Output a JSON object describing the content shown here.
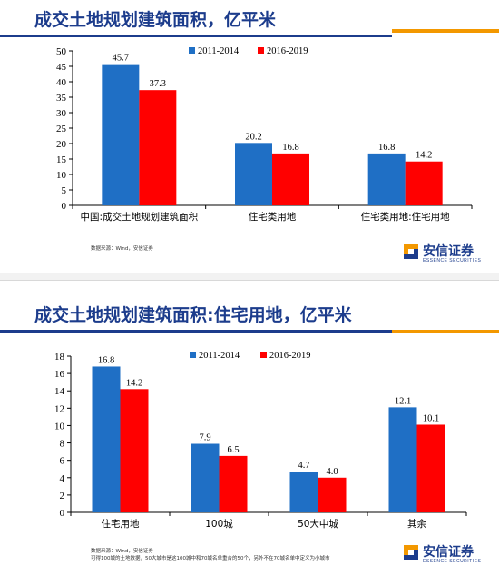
{
  "colors": {
    "blue": "#1f6fc5",
    "red": "#ff0000",
    "title": "#1c3c8c",
    "accent": "#f39800"
  },
  "logo": {
    "name_cn": "安信证券",
    "name_en": "ESSENCE SECURITIES",
    "icon": "essence-logo-icon"
  },
  "slide1": {
    "title": "成交土地规划建筑面积，亿平米",
    "source": "数据来源：Wind，安信证券"
  },
  "slide2": {
    "title": "成交土地规划建筑面积:住宅用地，亿平米",
    "source_line1": "数据来源：Wind，安信证券",
    "source_line2": "可得100城的土地数据，50大城市是这100城中和70城名单重合的50个，另外不在70城名单中定义为小城市"
  },
  "chart_data": [
    {
      "type": "bar",
      "title": "成交土地规划建筑面积，亿平米",
      "categories": [
        "中国:成交土地规划建筑面积",
        "住宅类用地",
        "住宅类用地:住宅用地"
      ],
      "series": [
        {
          "name": "2011-2014",
          "values": [
            45.7,
            20.2,
            16.8
          ]
        },
        {
          "name": "2016-2019",
          "values": [
            37.3,
            16.8,
            14.2
          ]
        }
      ],
      "data_labels": [
        [
          "45.7",
          "20.2",
          "16.8"
        ],
        [
          "37.3",
          "16.8",
          "14.2"
        ]
      ],
      "ylim": [
        0,
        50
      ],
      "yticks": [
        0,
        5,
        10,
        15,
        20,
        25,
        30,
        35,
        40,
        45,
        50
      ],
      "grid": false,
      "legend": "top-center"
    },
    {
      "type": "bar",
      "title": "成交土地规划建筑面积:住宅用地，亿平米",
      "categories": [
        "住宅用地",
        "100城",
        "50大中城",
        "其余"
      ],
      "series": [
        {
          "name": "2011-2014",
          "values": [
            16.8,
            7.9,
            4.7,
            12.1
          ]
        },
        {
          "name": "2016-2019",
          "values": [
            14.2,
            6.5,
            4.0,
            10.1
          ]
        }
      ],
      "data_labels": [
        [
          "16.8",
          "7.9",
          "4.7",
          "12.1"
        ],
        [
          "14.2",
          "6.5",
          "4.0",
          "10.1"
        ]
      ],
      "ylim": [
        0,
        18
      ],
      "yticks": [
        0,
        2,
        4,
        6,
        8,
        10,
        12,
        14,
        16,
        18
      ],
      "grid": false,
      "legend": "top-center"
    }
  ]
}
